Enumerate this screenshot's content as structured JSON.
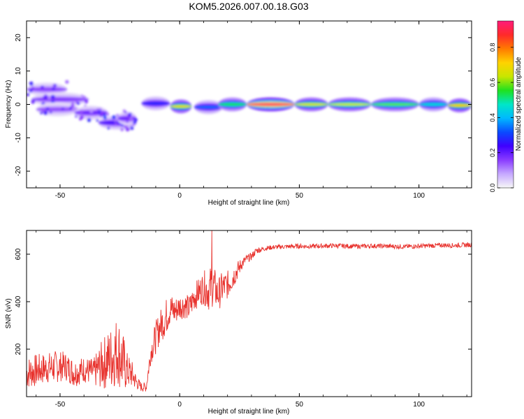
{
  "title": "KOM5.2026.007.00.18.G03",
  "colors": {
    "snr_line": "#e8332e",
    "axis": "#000000",
    "colormap": [
      "#f7f7f7",
      "#c6a9ff",
      "#8a3cff",
      "#3f00ff",
      "#0a4bff",
      "#00b8ff",
      "#00e6c8",
      "#1fe11f",
      "#c8e600",
      "#ffd200",
      "#ff7a00",
      "#ff2a2a",
      "#ff1b7a"
    ]
  },
  "chart_data": [
    {
      "type": "heatmap",
      "name": "spectrogram",
      "xlabel": "Height of straight line (km)",
      "ylabel": "Frequency (Hz)",
      "xlim": [
        -64,
        122
      ],
      "ylim": [
        -25,
        25
      ],
      "xticks": [
        -50,
        0,
        50,
        100
      ],
      "yticks": [
        -20,
        -10,
        0,
        10,
        20
      ],
      "xtick_labels": [
        "-50",
        "0",
        "50",
        "100"
      ],
      "ytick_labels": [
        "-20",
        "-10",
        "0",
        "10",
        "20"
      ],
      "colorbar": {
        "label": "Normalized spectral amplitude",
        "range": [
          0,
          0.95
        ],
        "ticks": [
          0.0,
          0.2,
          0.4,
          0.6,
          0.8
        ],
        "tick_labels": [
          "0.0",
          "0.2",
          "0.4",
          "0.6",
          "0.8"
        ]
      },
      "blobs": [
        {
          "x0": -64,
          "x1": -47,
          "f": 4.5,
          "amp": 0.16
        },
        {
          "x0": -62,
          "x1": -38,
          "f": 1.5,
          "amp": 0.17
        },
        {
          "x0": -60,
          "x1": -42,
          "f": -1.5,
          "amp": 0.15
        },
        {
          "x0": -44,
          "x1": -30,
          "f": -2.5,
          "amp": 0.2
        },
        {
          "x0": -34,
          "x1": -18,
          "f": -5.5,
          "amp": 0.24
        },
        {
          "x0": -26,
          "x1": -18,
          "f": -4.2,
          "amp": 0.2
        },
        {
          "x0": -16,
          "x1": -4,
          "f": 0.3,
          "amp": 0.28
        },
        {
          "x0": -4,
          "x1": 5,
          "f": -0.6,
          "amp": 0.68
        },
        {
          "x0": 6,
          "x1": 18,
          "f": -0.8,
          "amp": 0.34
        },
        {
          "x0": 16,
          "x1": 28,
          "f": 0.0,
          "amp": 0.55
        },
        {
          "x0": 28,
          "x1": 48,
          "f": 0.0,
          "amp": 0.95
        },
        {
          "x0": 48,
          "x1": 62,
          "f": 0.0,
          "amp": 0.66
        },
        {
          "x0": 62,
          "x1": 80,
          "f": 0.0,
          "amp": 0.64
        },
        {
          "x0": 80,
          "x1": 100,
          "f": 0.0,
          "amp": 0.58
        },
        {
          "x0": 100,
          "x1": 112,
          "f": 0.0,
          "amp": 0.46
        },
        {
          "x0": 112,
          "x1": 122,
          "f": -0.3,
          "amp": 0.72
        }
      ]
    },
    {
      "type": "line",
      "name": "snr",
      "xlabel": "Height of straight line (km)",
      "ylabel": "SNR (v/v)",
      "xlim": [
        -64,
        122
      ],
      "ylim": [
        0,
        700
      ],
      "xticks": [
        -50,
        0,
        50,
        100
      ],
      "yticks": [
        200,
        400,
        600
      ],
      "xtick_labels": [
        "-50",
        "0",
        "50",
        "100"
      ],
      "ytick_labels": [
        "200",
        "400",
        "600"
      ],
      "x": [
        -64,
        -60,
        -56,
        -52,
        -48,
        -44,
        -40,
        -36,
        -32,
        -28,
        -26,
        -24,
        -22,
        -20,
        -18,
        -16,
        -14,
        -12,
        -10,
        -8,
        -6,
        -4,
        -2,
        0,
        2,
        4,
        6,
        8,
        10,
        12,
        14,
        16,
        18,
        20,
        22,
        24,
        26,
        28,
        30,
        32,
        34,
        36,
        38,
        40,
        45,
        50,
        55,
        60,
        65,
        70,
        75,
        80,
        85,
        90,
        95,
        100,
        105,
        110,
        115,
        122
      ],
      "y_mean": [
        100,
        110,
        120,
        125,
        130,
        100,
        115,
        100,
        140,
        170,
        200,
        150,
        110,
        95,
        60,
        40,
        40,
        190,
        250,
        300,
        330,
        370,
        360,
        380,
        385,
        370,
        420,
        440,
        460,
        450,
        470,
        430,
        460,
        470,
        500,
        530,
        560,
        580,
        590,
        615,
        620,
        625,
        628,
        630,
        632,
        634,
        633,
        635,
        636,
        634,
        633,
        635,
        634,
        633,
        632,
        634,
        636,
        638,
        637,
        640
      ],
      "y_noise": [
        70,
        70,
        65,
        70,
        60,
        60,
        55,
        60,
        110,
        140,
        150,
        140,
        80,
        60,
        30,
        20,
        20,
        50,
        70,
        70,
        80,
        70,
        60,
        55,
        55,
        55,
        60,
        60,
        70,
        90,
        90,
        70,
        70,
        60,
        55,
        40,
        25,
        18,
        16,
        14,
        12,
        10,
        10,
        10,
        10,
        10,
        10,
        10,
        10,
        10,
        10,
        10,
        10,
        10,
        10,
        10,
        10,
        10,
        10,
        10
      ],
      "peak": {
        "x": 13.5,
        "y": 700
      }
    }
  ]
}
